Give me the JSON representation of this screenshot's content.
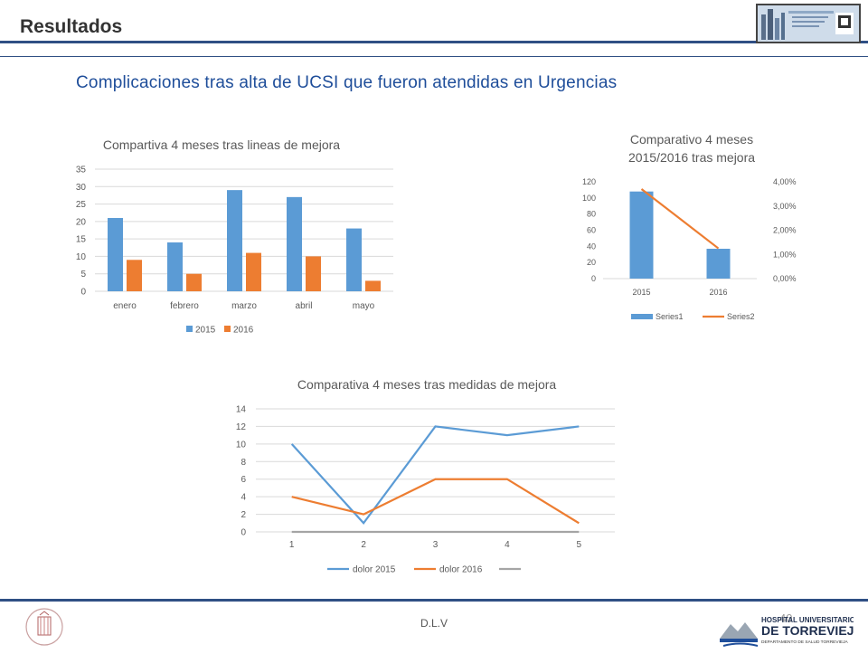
{
  "header": {
    "title": "Resultados"
  },
  "subtitle": "Complicaciones tras alta de UCSI que fueron atendidas en Urgencias",
  "footer": {
    "author": "D.L.V",
    "page_number": "40"
  },
  "logos": {
    "conference_banner": "conference-banner-icon",
    "generalitat_seal": "generalitat-valenciana-seal-icon",
    "hospital_lines": [
      "HOSPITAL UNIVERSITARIO",
      "DE TORREVIEJA",
      "DEPARTAMENTO DE SALUD TORREVIEJA"
    ]
  },
  "colors": {
    "blue": "#5b9bd5",
    "orange": "#ed7d31",
    "gray": "#a5a5a5",
    "rule": "#2f4f84",
    "subtitle": "#1f4e9a"
  },
  "chart_data": [
    {
      "type": "bar",
      "title": "Compartiva 4 meses tras lineas de mejora",
      "categories": [
        "enero",
        "febrero",
        "marzo",
        "abril",
        "mayo"
      ],
      "series": [
        {
          "name": "2015",
          "values": [
            21,
            14,
            29,
            27,
            18
          ]
        },
        {
          "name": "2016",
          "values": [
            9,
            5,
            11,
            10,
            3
          ]
        }
      ],
      "ylim": [
        0,
        35
      ],
      "yticks": [
        "0",
        "5",
        "10",
        "15",
        "20",
        "25",
        "30",
        "35"
      ],
      "grid": true,
      "legend": "bottom"
    },
    {
      "type": "bar",
      "title_lines": [
        "Comparativo 4 meses",
        "2015/2016 tras mejora"
      ],
      "categories": [
        "2015",
        "2016"
      ],
      "series": [
        {
          "name": "Series1",
          "type": "bar",
          "values": [
            108,
            37
          ],
          "axis": "left"
        },
        {
          "name": "Series2",
          "type": "line",
          "values": [
            0.037,
            0.0125
          ],
          "axis": "right"
        }
      ],
      "ylim": [
        0,
        120
      ],
      "yticks": [
        "0",
        "20",
        "40",
        "60",
        "80",
        "100",
        "120"
      ],
      "y2lim": [
        0,
        0.04
      ],
      "y2ticks": [
        "0,00%",
        "1,00%",
        "2,00%",
        "3,00%",
        "4,00%"
      ],
      "grid": false,
      "legend": "bottom"
    },
    {
      "type": "line",
      "title": "Comparativa 4 meses tras medidas de mejora",
      "x": [
        "1",
        "2",
        "3",
        "4",
        "5"
      ],
      "series": [
        {
          "name": "dolor 2015",
          "values": [
            10,
            1,
            12,
            11,
            12
          ]
        },
        {
          "name": "dolor 2016",
          "values": [
            4,
            2,
            6,
            6,
            1
          ]
        },
        {
          "name": "",
          "values": [
            0,
            0,
            0,
            0,
            0
          ]
        }
      ],
      "ylim": [
        0,
        14
      ],
      "yticks": [
        "0",
        "2",
        "4",
        "6",
        "8",
        "10",
        "12",
        "14"
      ],
      "grid": true,
      "legend": "bottom"
    }
  ]
}
